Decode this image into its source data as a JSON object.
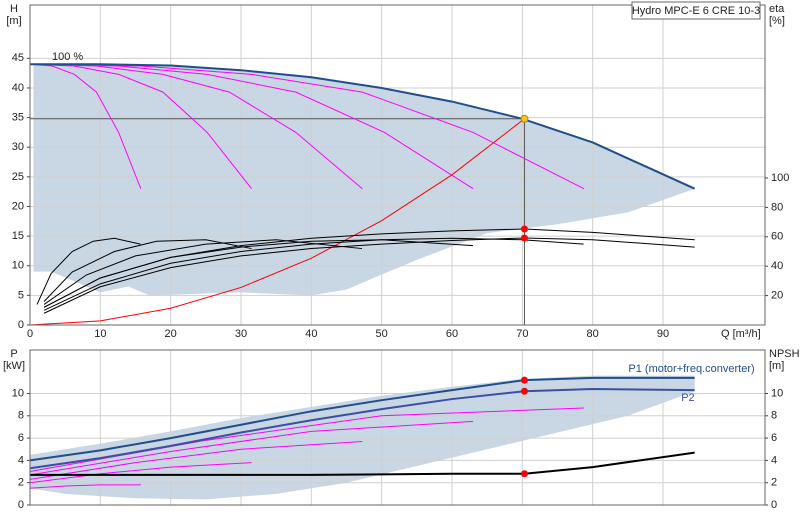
{
  "chart_data": [
    {
      "type": "line",
      "title": "Hydro MPC-E 6 CRE 10-3",
      "annotation": "100 %",
      "xlabel": "Q [m³/h]",
      "ylabel": [
        "H",
        "[m]"
      ],
      "y2label": [
        "eta",
        "[%]"
      ],
      "xlim": [
        0,
        104.5
      ],
      "ylim": [
        0,
        54
      ],
      "y2lim": [
        0,
        217.7
      ],
      "xticks": [
        0,
        10,
        20,
        30,
        40,
        50,
        60,
        70,
        80,
        90
      ],
      "x_tick_labels": true,
      "yticks": [
        0,
        5,
        10,
        15,
        20,
        25,
        30,
        35,
        40,
        45
      ],
      "y2ticks": [
        20,
        40,
        60,
        80,
        100
      ],
      "grid": true,
      "area_color": "#c9d6e3",
      "area": {
        "x": [
          0.5,
          10,
          20,
          30,
          40,
          50,
          60,
          70,
          80,
          94.5,
          85,
          75,
          65,
          55,
          45,
          40,
          30,
          17,
          14,
          10,
          3,
          0.5
        ],
        "values": [
          44,
          44,
          43.8,
          43,
          41.8,
          40,
          37.7,
          34.8,
          30.8,
          23,
          19,
          17,
          15.5,
          11,
          6,
          5,
          5.5,
          5,
          6.5,
          5.5,
          9,
          9
        ]
      },
      "series": [
        {
          "color": "#ff00ff",
          "x": [
            0,
            3.15,
            6.3,
            9.45,
            12.6,
            15.75
          ],
          "values": [
            44,
            43.7,
            42.3,
            39.3,
            32.5,
            23
          ]
        },
        {
          "color": "#ff00ff",
          "x": [
            0,
            6.3,
            12.6,
            18.9,
            25.2,
            31.5
          ],
          "values": [
            44,
            43.7,
            42.3,
            39.3,
            32.5,
            23
          ]
        },
        {
          "color": "#ff00ff",
          "x": [
            0,
            9.45,
            18.9,
            28.35,
            37.8,
            47.25
          ],
          "values": [
            44,
            43.7,
            42.3,
            39.3,
            32.5,
            23
          ]
        },
        {
          "color": "#ff00ff",
          "x": [
            0,
            12.6,
            25.2,
            37.8,
            50.4,
            63
          ],
          "values": [
            44,
            43.7,
            42.3,
            39.3,
            32.5,
            23
          ]
        },
        {
          "color": "#ff00ff",
          "x": [
            0,
            15.75,
            31.5,
            47.25,
            63,
            78.75
          ],
          "values": [
            44,
            43.7,
            42.3,
            39.3,
            32.5,
            23
          ]
        },
        {
          "color": "#1f4e8c",
          "width": 2,
          "x": [
            0,
            10,
            20,
            30,
            40,
            50,
            60,
            70,
            80,
            94.5
          ],
          "values": [
            44,
            44,
            43.8,
            43,
            41.8,
            40,
            37.7,
            34.8,
            30.8,
            23
          ]
        },
        {
          "color": "#ff0000",
          "x": [
            0,
            10,
            20,
            30,
            40,
            50,
            60,
            70.3
          ],
          "values": [
            0,
            0.7,
            2.82,
            6.34,
            11.27,
            17.6,
            25.35,
            34.8
          ]
        },
        {
          "color": "#000000",
          "axis": "y2",
          "x": [
            1,
            3,
            6,
            9,
            12,
            15.7
          ],
          "values": [
            14,
            35,
            50,
            57,
            59,
            55
          ]
        },
        {
          "color": "#000000",
          "axis": "y2",
          "x": [
            2,
            6,
            12,
            18,
            25,
            31.5
          ],
          "values": [
            16,
            36,
            50,
            57,
            58,
            52
          ]
        },
        {
          "color": "#000000",
          "axis": "y2",
          "x": [
            2,
            8,
            15,
            25,
            35,
            47.2
          ],
          "values": [
            14,
            34,
            47,
            55,
            58,
            52
          ]
        },
        {
          "color": "#000000",
          "axis": "y2",
          "x": [
            2,
            10,
            20,
            30,
            40,
            50,
            63
          ],
          "values": [
            12,
            32,
            46,
            53,
            57,
            58,
            54
          ]
        },
        {
          "color": "#000000",
          "axis": "y2",
          "x": [
            2,
            10,
            20,
            30,
            40,
            50,
            60,
            70,
            78.7
          ],
          "values": [
            10,
            28,
            42,
            50,
            55,
            58,
            59,
            58,
            55
          ]
        },
        {
          "color": "#000000",
          "axis": "y2",
          "x": [
            2,
            10,
            20,
            30,
            40,
            50,
            60,
            70.3,
            80,
            94.5
          ],
          "values": [
            12,
            32,
            46,
            54,
            59,
            62,
            64,
            65.3,
            63,
            58
          ]
        },
        {
          "color": "#000000",
          "axis": "y2",
          "x": [
            2,
            10,
            20,
            30,
            40,
            50,
            60,
            70.3,
            80,
            94.5
          ],
          "values": [
            8,
            26,
            39,
            47,
            52,
            55,
            57.5,
            59.2,
            58,
            53
          ]
        }
      ],
      "points": [
        {
          "x": 70.3,
          "y": 34.8,
          "color": "#f5c518",
          "crosshair": true
        },
        {
          "x": 70.3,
          "y": 65.3,
          "axis": "y2",
          "color": "#ff0000"
        },
        {
          "x": 70.3,
          "y": 59.2,
          "axis": "y2",
          "color": "#ff0000"
        }
      ]
    },
    {
      "type": "line",
      "ylabel": [
        "P",
        "[kW]"
      ],
      "y2label": [
        "NPSH",
        "[m]"
      ],
      "xlim": [
        0,
        104.5
      ],
      "ylim": [
        0,
        13.9
      ],
      "y2lim": [
        0,
        13.9
      ],
      "xticks": [
        0,
        10,
        20,
        30,
        40,
        50,
        60,
        70,
        80,
        90
      ],
      "x_tick_labels": false,
      "yticks": [
        0,
        2,
        4,
        6,
        8,
        10
      ],
      "y2ticks": [
        0,
        2,
        4,
        6,
        8,
        10
      ],
      "grid": true,
      "area_color": "#c9d6e3",
      "area": {
        "x": [
          0,
          10,
          20,
          30,
          40,
          50,
          60,
          70,
          80,
          94.5,
          94.5,
          85,
          75,
          65,
          55,
          45,
          35,
          25,
          15,
          5,
          0
        ],
        "values": [
          4.5,
          5.5,
          6.6,
          7.8,
          8.8,
          9.8,
          10.6,
          11.3,
          11.6,
          11.6,
          10.2,
          8,
          6.5,
          5,
          3.5,
          2,
          1,
          0.5,
          0.6,
          1,
          1.5
        ]
      },
      "series": [
        {
          "color": "#ff00ff",
          "x": [
            0,
            5,
            10,
            15.75
          ],
          "values": [
            1.5,
            1.7,
            1.8,
            1.8
          ]
        },
        {
          "color": "#ff00ff",
          "x": [
            0,
            10,
            20,
            31.5
          ],
          "values": [
            2,
            2.8,
            3.4,
            3.8
          ]
        },
        {
          "color": "#ff00ff",
          "x": [
            0,
            15,
            30,
            47.25
          ],
          "values": [
            2.3,
            3.8,
            5,
            5.7
          ]
        },
        {
          "color": "#ff00ff",
          "x": [
            0,
            20,
            40,
            63
          ],
          "values": [
            2.7,
            4.8,
            6.6,
            7.5
          ]
        },
        {
          "color": "#ff00ff",
          "x": [
            0,
            25,
            50,
            78.75
          ],
          "values": [
            3,
            5.8,
            8,
            8.7
          ]
        },
        {
          "name": "P1 (motor+freq.converter)",
          "color": "#1f4e8c",
          "width": 2,
          "x": [
            0,
            10,
            20,
            30,
            40,
            50,
            60,
            70.3,
            80,
            94.5
          ],
          "values": [
            4,
            4.9,
            6,
            7.2,
            8.4,
            9.4,
            10.3,
            11.2,
            11.4,
            11.4
          ]
        },
        {
          "name": "P2",
          "color": "#3b4fa8",
          "width": 2,
          "x": [
            0,
            10,
            20,
            30,
            40,
            50,
            60,
            70.3,
            80,
            94.5
          ],
          "values": [
            3.3,
            4.2,
            5.3,
            6.5,
            7.6,
            8.6,
            9.5,
            10.2,
            10.4,
            10.3
          ]
        },
        {
          "color": "#000000",
          "width": 2,
          "axis": "y2",
          "x": [
            0,
            10,
            20,
            30,
            40,
            50,
            60,
            70.3,
            80,
            94.5
          ],
          "values": [
            2.7,
            2.7,
            2.7,
            2.7,
            2.7,
            2.75,
            2.8,
            2.8,
            3.4,
            4.7
          ]
        }
      ],
      "points": [
        {
          "x": 70.3,
          "y": 11.2,
          "color": "#ff0000"
        },
        {
          "x": 70.3,
          "y": 10.2,
          "color": "#ff0000"
        },
        {
          "x": 70.3,
          "y": 2.8,
          "axis": "y2",
          "color": "#ff0000"
        }
      ]
    }
  ]
}
